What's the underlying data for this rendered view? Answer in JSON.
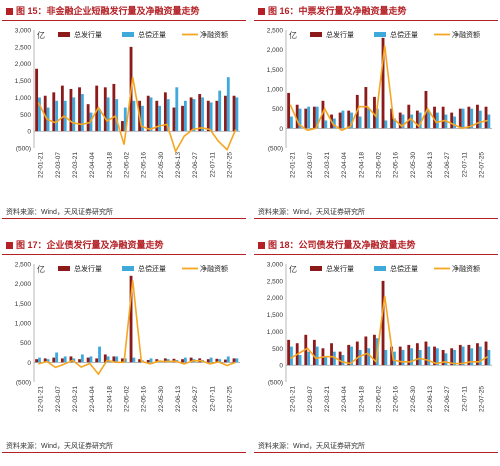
{
  "legend_labels": {
    "gross": "总发行量",
    "repay": "总偿还量",
    "net": "净融资额"
  },
  "colors": {
    "gross": "#8b1a1a",
    "repay": "#3fa9dc",
    "net": "#f5a623",
    "title": "#b32025"
  },
  "source": "资料来源：Wind，天风证券研究所",
  "x_tick_labels": [
    "22-01-21",
    "22-03-07",
    "22-03-21",
    "22-04-04",
    "22-04-18",
    "22-05-02",
    "22-05-16",
    "22-05-30",
    "22-06-13",
    "22-06-27",
    "22-07-11",
    "22-07-25"
  ],
  "chart_data": [
    {
      "type": "bar",
      "fig_label": "图 15：",
      "title": "非金融企业短融发行量及净融资量走势",
      "unit": "亿",
      "ylim": [
        -500,
        3000
      ],
      "yticks": [
        3000,
        2500,
        2000,
        1500,
        1000,
        500,
        0,
        -500
      ],
      "ytick_labels": [
        "3,000",
        "2,500",
        "2,000",
        "1,500",
        "1,000",
        "500",
        "0",
        "(500)"
      ],
      "x_ticks": [
        "22-01-21",
        "22-03-07",
        "22-03-21",
        "22-04-04",
        "22-04-18",
        "22-05-02",
        "22-05-16",
        "22-05-30",
        "22-06-13",
        "22-06-27",
        "22-07-11",
        "22-07-25"
      ],
      "series": [
        {
          "name": "总发行量",
          "values": [
            1850,
            1050,
            1150,
            1350,
            1250,
            1300,
            800,
            1350,
            1300,
            1400,
            300,
            2500,
            900,
            1050,
            900,
            1150,
            700,
            750,
            1000,
            1100,
            900,
            900,
            1050,
            1050
          ]
        },
        {
          "name": "总偿还量",
          "values": [
            1000,
            700,
            900,
            900,
            1000,
            1100,
            550,
            650,
            1000,
            950,
            700,
            900,
            750,
            1000,
            750,
            950,
            1300,
            900,
            950,
            1000,
            850,
            1200,
            1600,
            1000
          ]
        },
        {
          "name": "净融资额",
          "values": [
            850,
            350,
            250,
            450,
            250,
            200,
            250,
            700,
            300,
            450,
            -400,
            1600,
            150,
            50,
            150,
            200,
            -600,
            -150,
            50,
            100,
            50,
            -300,
            -550,
            50
          ]
        }
      ]
    },
    {
      "type": "bar",
      "fig_label": "图 16：",
      "title": "中票发行量及净融资量走势",
      "unit": "亿",
      "ylim": [
        -500,
        2500
      ],
      "yticks": [
        2500,
        2000,
        1500,
        1000,
        500,
        0,
        -500
      ],
      "ytick_labels": [
        "2,500",
        "2,000",
        "1,500",
        "1,000",
        "500",
        "0",
        "(500)"
      ],
      "x_ticks": [
        "22-01-21",
        "22-03-07",
        "22-03-21",
        "22-04-04",
        "22-04-18",
        "22-05-02",
        "22-05-16",
        "22-05-30",
        "22-06-13",
        "22-06-27",
        "22-07-11",
        "22-07-25"
      ],
      "series": [
        {
          "name": "总发行量",
          "values": [
            900,
            600,
            500,
            550,
            700,
            350,
            400,
            450,
            850,
            1050,
            800,
            2300,
            500,
            400,
            600,
            450,
            950,
            550,
            550,
            400,
            500,
            550,
            600,
            550
          ]
        },
        {
          "name": "总偿还量",
          "values": [
            300,
            500,
            550,
            550,
            200,
            250,
            450,
            400,
            300,
            500,
            500,
            200,
            250,
            350,
            350,
            400,
            450,
            400,
            350,
            300,
            500,
            500,
            450,
            350
          ]
        },
        {
          "name": "净融资额",
          "values": [
            600,
            100,
            -50,
            0,
            500,
            100,
            -50,
            50,
            550,
            550,
            300,
            2100,
            250,
            50,
            250,
            50,
            500,
            150,
            200,
            100,
            0,
            50,
            150,
            200
          ]
        }
      ]
    },
    {
      "type": "bar",
      "fig_label": "图 17：",
      "title": "企业债发行量及净融资量走势",
      "unit": "亿",
      "ylim": [
        -500,
        2500
      ],
      "yticks": [
        2500,
        2000,
        1500,
        1000,
        500,
        0,
        -500
      ],
      "ytick_labels": [
        "2,500",
        "2,000",
        "1,500",
        "1,000",
        "500",
        "0",
        "(500)"
      ],
      "x_ticks": [
        "22-01-21",
        "22-03-07",
        "22-03-21",
        "22-04-04",
        "22-04-18",
        "22-05-02",
        "22-05-16",
        "22-05-30",
        "22-06-13",
        "22-06-27",
        "22-07-11",
        "22-07-25"
      ],
      "series": [
        {
          "name": "总发行量",
          "values": [
            80,
            100,
            120,
            100,
            150,
            80,
            120,
            100,
            200,
            150,
            100,
            2200,
            80,
            60,
            80,
            100,
            90,
            80,
            120,
            100,
            80,
            90,
            70,
            100
          ]
        },
        {
          "name": "总偿还量",
          "values": [
            120,
            80,
            250,
            150,
            100,
            200,
            150,
            400,
            150,
            150,
            100,
            120,
            50,
            100,
            50,
            80,
            60,
            120,
            80,
            60,
            120,
            80,
            150,
            100
          ]
        },
        {
          "name": "净融资额",
          "values": [
            -40,
            20,
            -130,
            -50,
            50,
            -120,
            -30,
            -300,
            50,
            0,
            0,
            2080,
            30,
            -40,
            30,
            20,
            30,
            -40,
            40,
            40,
            -40,
            10,
            -80,
            0
          ]
        }
      ]
    },
    {
      "type": "bar",
      "fig_label": "图 18：",
      "title": "公司债发行量及净融资量走势",
      "unit": "亿",
      "ylim": [
        -500,
        3000
      ],
      "yticks": [
        3000,
        2500,
        2000,
        1500,
        1000,
        500,
        0,
        -500
      ],
      "ytick_labels": [
        "3,000",
        "2,500",
        "2,000",
        "1,500",
        "1,000",
        "500",
        "0",
        "(500)"
      ],
      "x_ticks": [
        "22-01-21",
        "22-03-07",
        "22-03-21",
        "22-04-04",
        "22-04-18",
        "22-05-02",
        "22-05-16",
        "22-05-30",
        "22-06-13",
        "22-06-27",
        "22-07-11",
        "22-07-25"
      ],
      "series": [
        {
          "name": "总发行量",
          "values": [
            750,
            650,
            900,
            750,
            500,
            650,
            400,
            600,
            700,
            850,
            900,
            2500,
            550,
            550,
            600,
            650,
            700,
            550,
            450,
            500,
            600,
            600,
            650,
            700
          ]
        },
        {
          "name": "总偿还量",
          "values": [
            550,
            300,
            400,
            550,
            250,
            400,
            300,
            550,
            450,
            500,
            800,
            450,
            400,
            450,
            500,
            450,
            550,
            500,
            350,
            450,
            550,
            500,
            550,
            450
          ]
        },
        {
          "name": "净融资额",
          "values": [
            200,
            350,
            500,
            200,
            250,
            250,
            100,
            50,
            250,
            350,
            100,
            2050,
            150,
            100,
            100,
            200,
            150,
            50,
            100,
            50,
            50,
            100,
            100,
            250
          ]
        }
      ]
    }
  ]
}
